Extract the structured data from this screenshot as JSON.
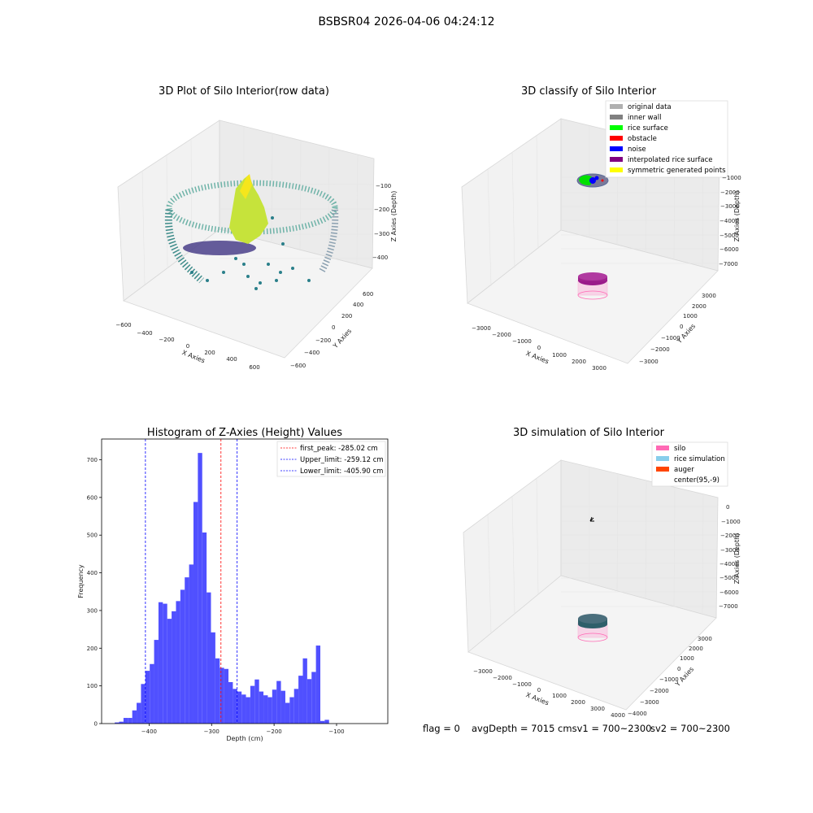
{
  "suptitle": "BSBSR04 2026-04-06 04:24:12",
  "panels": {
    "raw": {
      "title": "3D Plot of Silo Interior(row data)",
      "xlabel": "X Axies",
      "ylabel": "Y Axies",
      "zlabel": "Z Axies (Depth)",
      "xticks": [
        "−600",
        "−400",
        "−200",
        "0",
        "200",
        "400",
        "600"
      ],
      "yticks": [
        "−600",
        "−400",
        "−200",
        "0",
        "200",
        "400",
        "600"
      ],
      "zticks": [
        "−400",
        "−300",
        "−200",
        "−100"
      ]
    },
    "classify": {
      "title": "3D classify of Silo Interior",
      "xlabel": "X Axies",
      "ylabel": "Y Axies",
      "zlabel": "Z Axies (Depth)",
      "xticks": [
        "−3000",
        "−2000",
        "−1000",
        "0",
        "1000",
        "2000",
        "3000"
      ],
      "yticks": [
        "−3000",
        "−2000",
        "−1000",
        "0",
        "1000",
        "2000",
        "3000"
      ],
      "zticks": [
        "−7000",
        "−6000",
        "−5000",
        "−4000",
        "−3000",
        "−2000",
        "−1000"
      ],
      "legend": [
        {
          "label": "original data",
          "color": "#b0b0b0"
        },
        {
          "label": "inner wall",
          "color": "#808080"
        },
        {
          "label": "rice surface",
          "color": "#00ff00"
        },
        {
          "label": "obstacle",
          "color": "#ff0000"
        },
        {
          "label": "noise",
          "color": "#0000ff"
        },
        {
          "label": "interpolated rice surface",
          "color": "#800080"
        },
        {
          "label": "symmetric generated points",
          "color": "#ffff00"
        }
      ]
    },
    "simulation": {
      "title": "3D simulation of Silo Interior",
      "xlabel": "X Axies",
      "ylabel": "Y Axies",
      "zlabel": "Z Axies (Depth)",
      "xticks": [
        "−3000",
        "−2000",
        "−1000",
        "0",
        "1000",
        "2000",
        "3000",
        "4000"
      ],
      "yticks": [
        "−4000",
        "−3000",
        "−2000",
        "−1000",
        "0",
        "1000",
        "2000",
        "3000"
      ],
      "zticks": [
        "−7000",
        "−6000",
        "−5000",
        "−4000",
        "−3000",
        "−2000",
        "−1000",
        "0"
      ],
      "legend": [
        {
          "label": "silo",
          "color": "#ff69b4"
        },
        {
          "label": "rice simulation",
          "color": "#87ceeb"
        },
        {
          "label": "auger",
          "color": "#ff4500"
        },
        {
          "label": "center(95,-9)",
          "color": "#ffffff"
        }
      ]
    }
  },
  "footer": {
    "flag": "flag = 0",
    "avg": "avgDepth = 7015 cmsv1 = 700~2300",
    "sv2": "sv2 = 700~2300"
  },
  "chart_data": {
    "type": "bar",
    "title": "Histogram of Z-Axies (Height) Values",
    "xlabel": "Depth (cm)",
    "ylabel": "Frequency",
    "xlim": [
      -476,
      -18
    ],
    "ylim": [
      0,
      755
    ],
    "xticks": [
      -400,
      -300,
      -200,
      -100
    ],
    "yticks": [
      0,
      100,
      200,
      300,
      400,
      500,
      600,
      700
    ],
    "bar_color": "#5050ff",
    "bins_start": -455,
    "bin_width": 7,
    "values": [
      3,
      5,
      15,
      15,
      35,
      55,
      105,
      140,
      158,
      222,
      322,
      318,
      278,
      298,
      325,
      355,
      388,
      422,
      588,
      718,
      507,
      348,
      242,
      173,
      148,
      145,
      110,
      92,
      85,
      77,
      70,
      100,
      117,
      85,
      75,
      70,
      90,
      113,
      87,
      55,
      70,
      92,
      127,
      173,
      118,
      137,
      207,
      7,
      10
    ],
    "vlines": [
      {
        "label": "first_peak: -285.02 cm",
        "x": -285.02,
        "color": "#ff0000"
      },
      {
        "label": "Upper_limit: -259.12 cm",
        "x": -259.12,
        "color": "#0000ff"
      },
      {
        "label": "Lower_limit: -405.90 cm",
        "x": -405.9,
        "color": "#0000ff"
      }
    ]
  }
}
